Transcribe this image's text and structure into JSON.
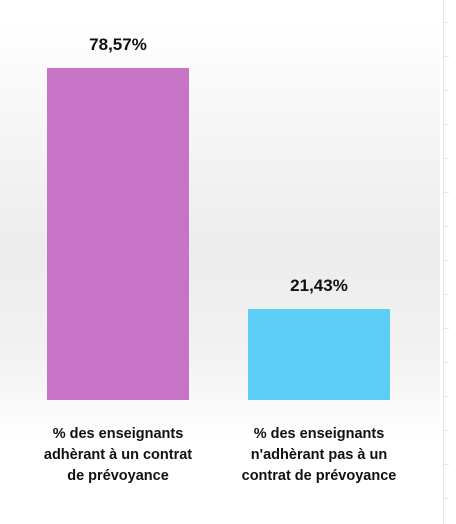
{
  "chart_data": {
    "type": "bar",
    "categories": [
      [
        "% des enseignants",
        "adhèrant à un  contrat",
        "de prévoyance"
      ],
      [
        "% des enseignants",
        "n'adhèrant pas à un",
        "contrat de prévoyance"
      ]
    ],
    "values": [
      78.57,
      21.43
    ],
    "data_labels": [
      "78,57%",
      "21,43%"
    ],
    "colors": [
      "#c774c6",
      "#5ccdf4"
    ],
    "ylim": [
      0,
      100
    ],
    "title": "",
    "xlabel": "",
    "ylabel": "",
    "grid": false,
    "legend": "none"
  }
}
